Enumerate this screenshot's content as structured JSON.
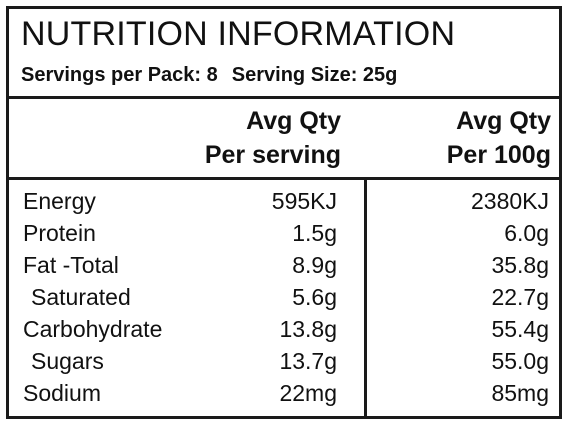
{
  "header": {
    "title": "NUTRITION INFORMATION",
    "servings_per_pack": "Servings per Pack: 8",
    "serving_size": "Serving Size: 25g"
  },
  "columns": [
    {
      "line1": "Avg Qty",
      "line2": "Per serving"
    },
    {
      "line1": "Avg Qty",
      "line2": "Per 100g"
    }
  ],
  "rows": [
    {
      "name": "Energy",
      "per_serving": "595KJ",
      "per_100g": "2380KJ"
    },
    {
      "name": "Protein",
      "per_serving": "1.5g",
      "per_100g": "6.0g"
    },
    {
      "name": "Fat -Total",
      "per_serving": "8.9g",
      "per_100g": "35.8g"
    },
    {
      "name": "Saturated",
      "per_serving": "5.6g",
      "per_100g": "22.7g"
    },
    {
      "name": "Carbohydrate",
      "per_serving": "13.8g",
      "per_100g": "55.4g"
    },
    {
      "name": "Sugars",
      "per_serving": "13.7g",
      "per_100g": "55.0g"
    },
    {
      "name": "Sodium",
      "per_serving": "22mg",
      "per_100g": "85mg"
    }
  ]
}
